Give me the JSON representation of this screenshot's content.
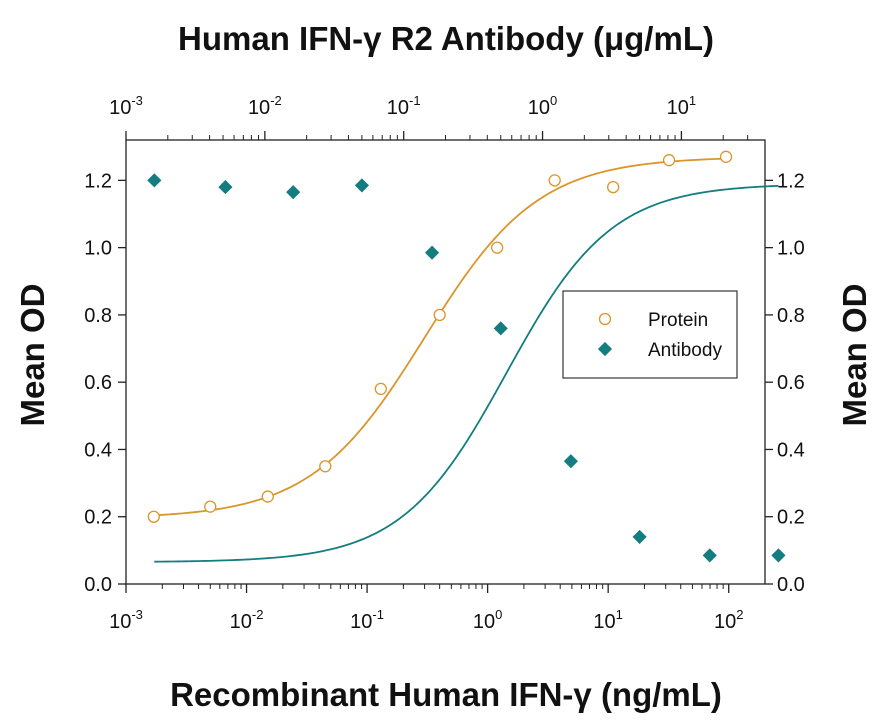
{
  "colors": {
    "protein": "#d9962a",
    "antibody": "#137d80",
    "axis": "#222222"
  },
  "chart_data": {
    "type": "scatter",
    "title": "",
    "top_axis": {
      "label": "Human IFN-γ R2 Antibody (μg/mL)",
      "scale": "log",
      "lim": [
        0.001,
        40
      ],
      "ticks": [
        {
          "value": 0.001,
          "base": "10",
          "exp": "-3"
        },
        {
          "value": 0.01,
          "base": "10",
          "exp": "-2"
        },
        {
          "value": 0.1,
          "base": "10",
          "exp": "-1"
        },
        {
          "value": 1,
          "base": "10",
          "exp": "0"
        },
        {
          "value": 10,
          "base": "10",
          "exp": "1"
        }
      ]
    },
    "x_axis": {
      "label": "Recombinant Human IFN-γ (ng/mL)",
      "scale": "log",
      "lim": [
        0.001,
        200
      ],
      "ticks": [
        {
          "value": 0.001,
          "base": "10",
          "exp": "-3"
        },
        {
          "value": 0.01,
          "base": "10",
          "exp": "-2"
        },
        {
          "value": 0.1,
          "base": "10",
          "exp": "-1"
        },
        {
          "value": 1,
          "base": "10",
          "exp": "0"
        },
        {
          "value": 10,
          "base": "10",
          "exp": "1"
        },
        {
          "value": 100,
          "base": "10",
          "exp": "2"
        }
      ]
    },
    "y_left": {
      "label": "Mean OD",
      "lim": [
        0.0,
        1.32
      ],
      "ticks": [
        "0.0",
        "0.2",
        "0.4",
        "0.6",
        "0.8",
        "1.0",
        "1.2"
      ]
    },
    "y_right": {
      "label": "Mean OD",
      "lim": [
        0.0,
        1.32
      ],
      "ticks": [
        "0.0",
        "0.2",
        "0.4",
        "0.6",
        "0.8",
        "1.0",
        "1.2"
      ]
    },
    "legend": {
      "placement": "center-right",
      "entries": [
        "Protein",
        "Antibody"
      ]
    },
    "series": [
      {
        "name": "Protein",
        "axis": "bottom",
        "marker": "open-circle",
        "x": [
          0.0017,
          0.005,
          0.015,
          0.045,
          0.13,
          0.4,
          1.2,
          3.6,
          11,
          32,
          95
        ],
        "y": [
          0.2,
          0.23,
          0.26,
          0.35,
          0.58,
          0.8,
          1.0,
          1.2,
          1.18,
          1.26,
          1.27
        ],
        "fit": {
          "bottom": 0.195,
          "top": 1.27,
          "ec50": 0.3,
          "hill": 0.92
        }
      },
      {
        "name": "Antibody",
        "axis": "top",
        "marker": "filled-diamond",
        "x": [
          0.0016,
          0.0052,
          0.016,
          0.05,
          0.16,
          0.5,
          1.6,
          5,
          16,
          50
        ],
        "y": [
          1.2,
          1.18,
          1.165,
          1.185,
          0.985,
          0.76,
          0.365,
          0.14,
          0.085,
          0.085
        ],
        "fit": {
          "bottom": 0.065,
          "top": 1.19,
          "ec50": 0.55,
          "hill": 1.15
        }
      }
    ]
  }
}
